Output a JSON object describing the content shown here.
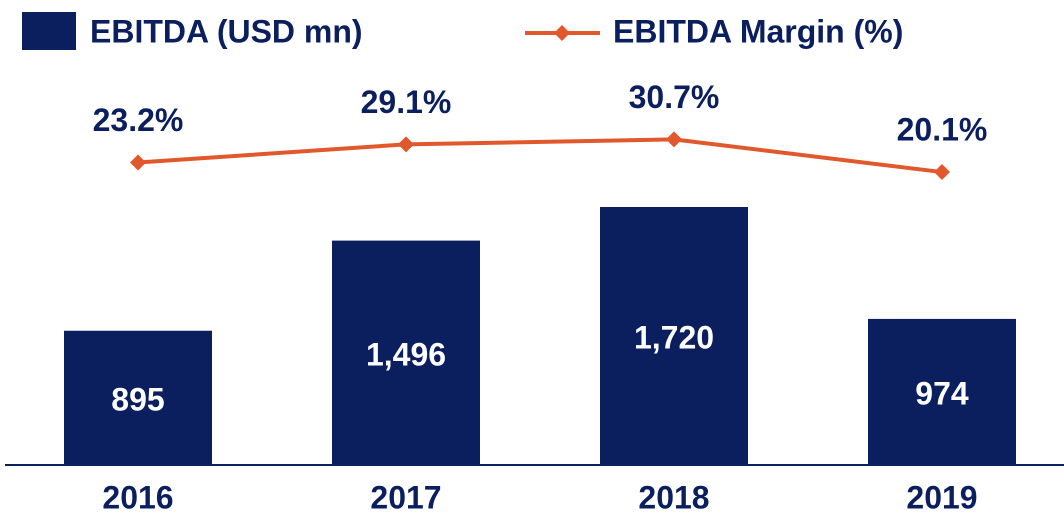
{
  "chart_data": {
    "type": "bar",
    "categories": [
      "2016",
      "2017",
      "2018",
      "2019"
    ],
    "series": [
      {
        "name": "EBITDA (USD mn)",
        "type": "bar",
        "color": "#0b1f5e",
        "values": [
          895,
          1496,
          1720,
          974
        ],
        "value_labels": [
          "895",
          "1,496",
          "1,720",
          "974"
        ]
      },
      {
        "name": "EBITDA Margin (%)",
        "type": "line",
        "axis": "y2",
        "color": "#e0582b",
        "values": [
          23.2,
          29.1,
          30.7,
          20.1
        ],
        "value_labels": [
          "23.2%",
          "29.1%",
          "30.7%",
          "20.1%"
        ]
      }
    ],
    "ylim": [
      0,
      2300
    ],
    "y2lim": [
      -75,
      37
    ],
    "legend": "top"
  }
}
